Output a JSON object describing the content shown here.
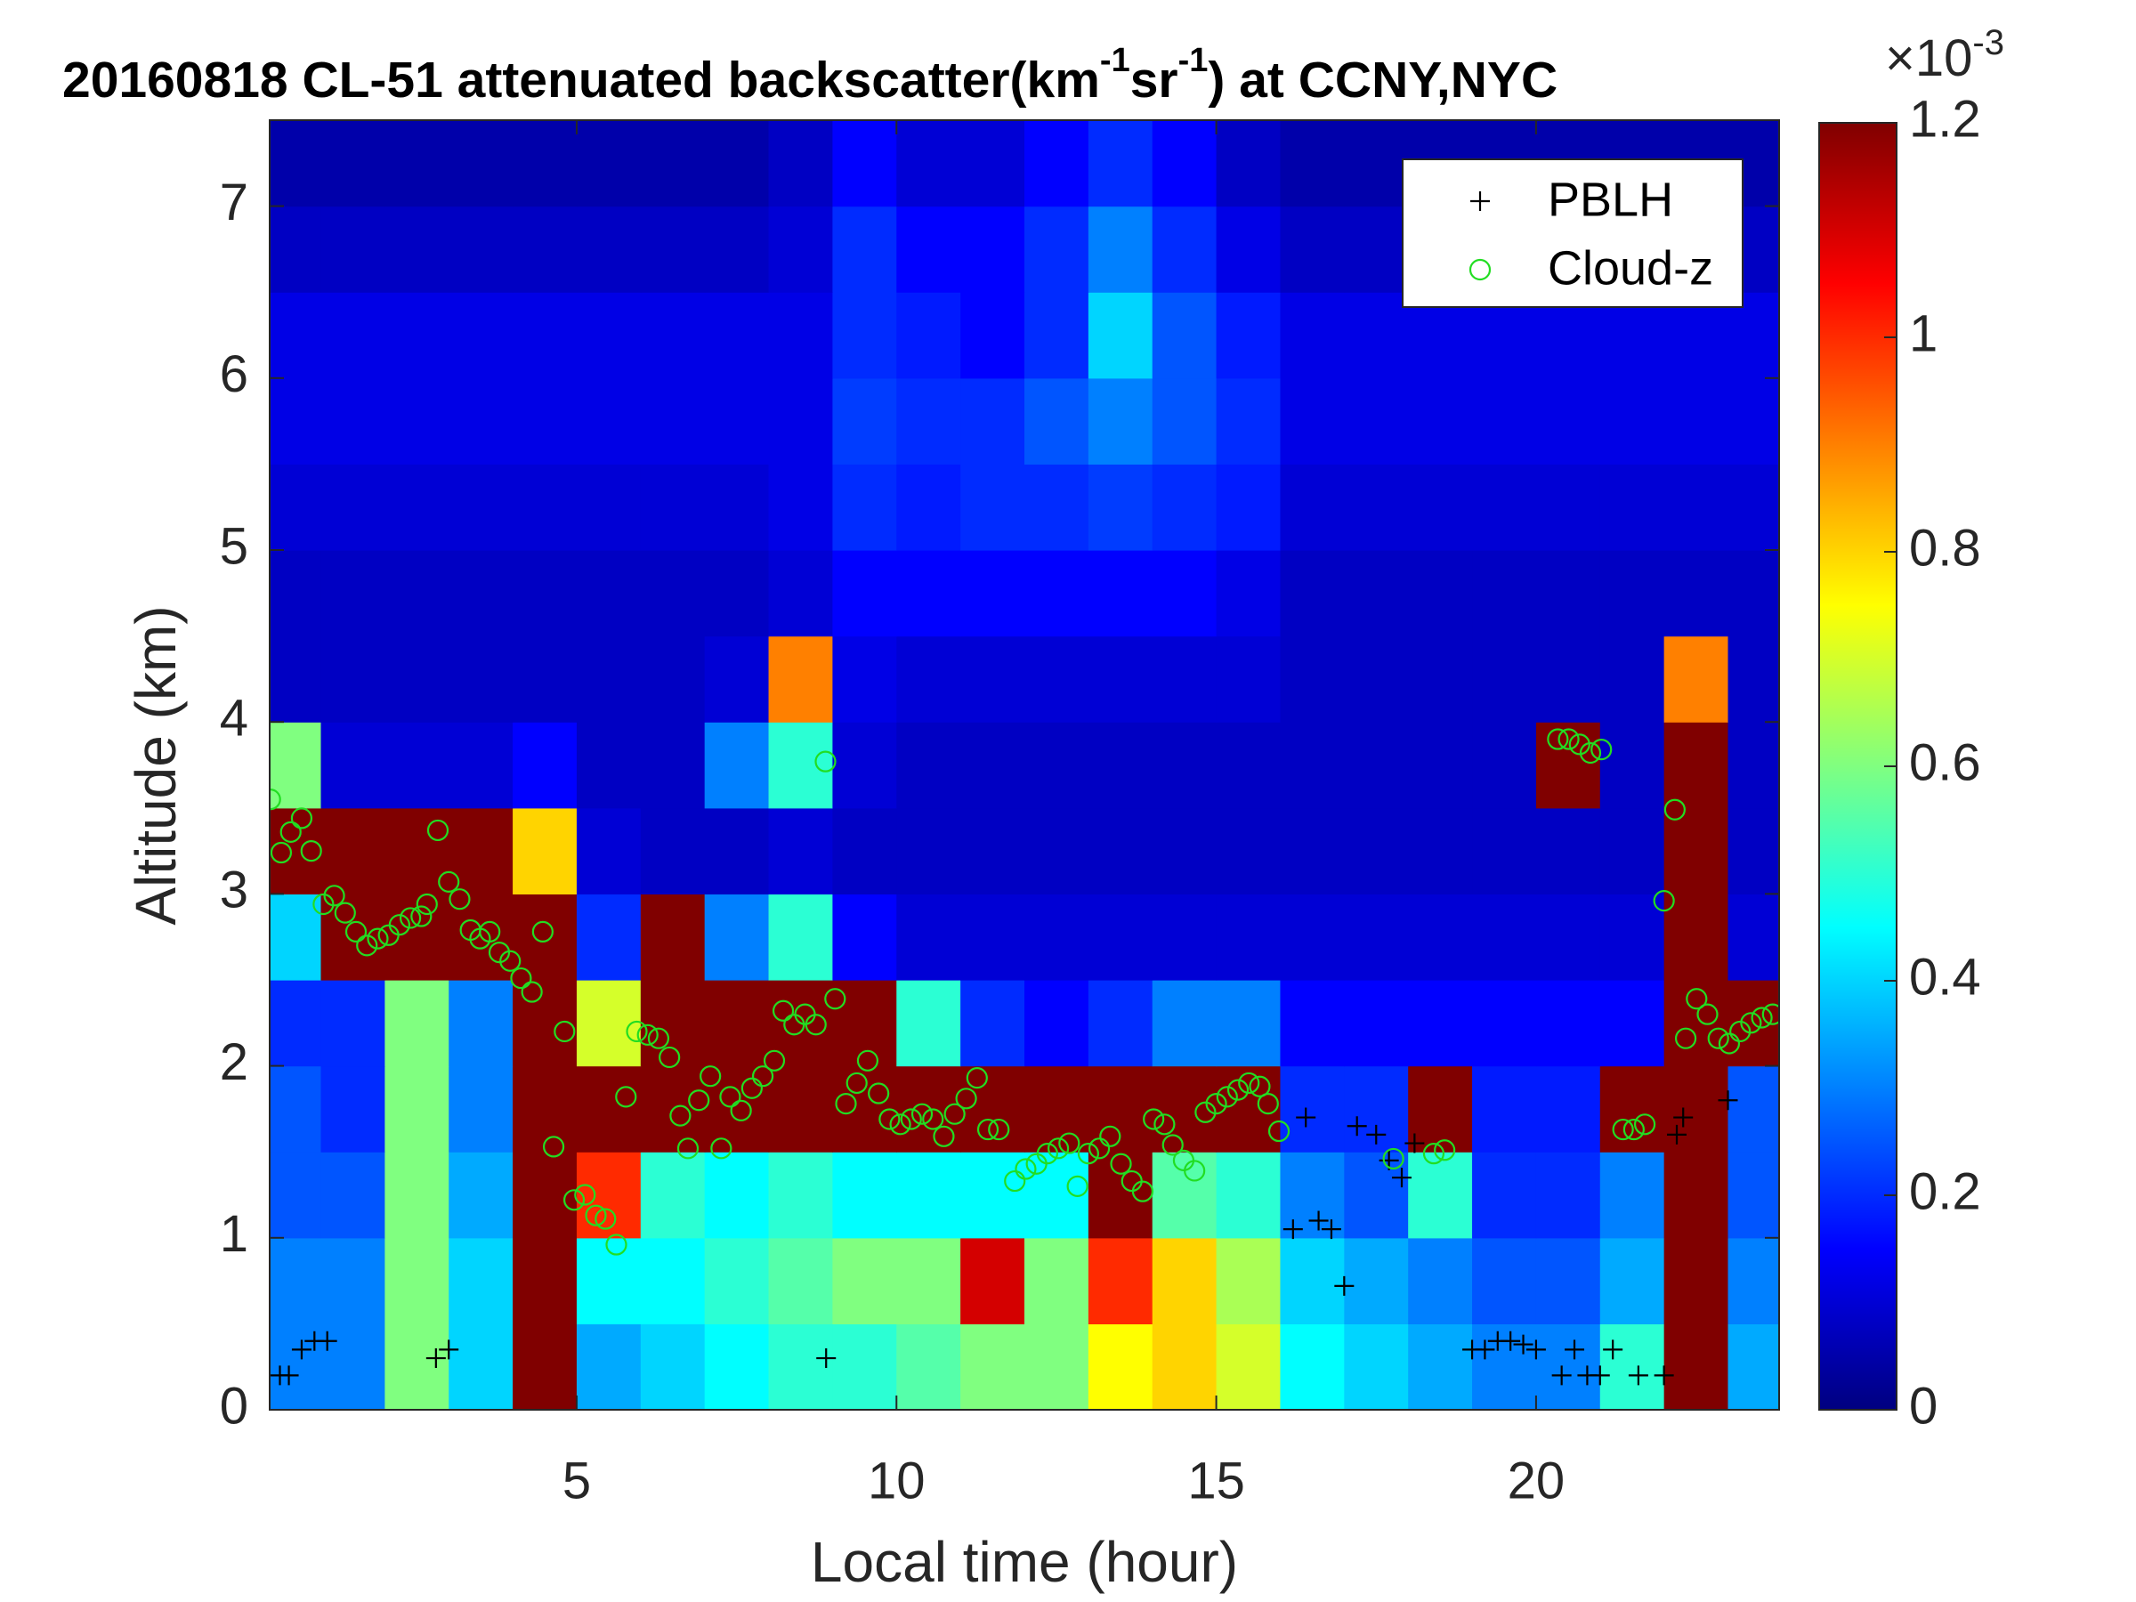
{
  "chart_data": {
    "type": "heatmap",
    "title_parts": [
      "20160818  CL-51 attenuated backscatter(km",
      "-1",
      "sr",
      "-1",
      ") at CCNY,NYC"
    ],
    "xlabel": "Local time (hour)",
    "ylabel": "Altitude (km)",
    "colormap": "jet",
    "x": [
      0.5,
      1.5,
      2.5,
      3.5,
      4.5,
      5.5,
      6.5,
      7.5,
      8.5,
      9.5,
      10.5,
      11.5,
      12.5,
      13.5,
      14.5,
      15.5,
      16.5,
      17.5,
      18.5,
      19.5,
      20.5,
      21.5,
      22.5,
      23.5
    ],
    "y": [
      0.25,
      0.75,
      1.25,
      1.75,
      2.25,
      2.75,
      3.25,
      3.75,
      4.25,
      4.75,
      5.25,
      5.75,
      6.25,
      6.75,
      7.25
    ],
    "z": [
      [
        0.3,
        0.3,
        0.6,
        0.4,
        1.2,
        0.35,
        0.4,
        0.45,
        0.5,
        0.5,
        0.55,
        0.6,
        0.6,
        0.75,
        0.8,
        0.7,
        0.45,
        0.4,
        0.35,
        0.3,
        0.3,
        0.5,
        1.2,
        0.35
      ],
      [
        0.3,
        0.3,
        0.6,
        0.4,
        1.2,
        0.45,
        0.45,
        0.5,
        0.55,
        0.6,
        0.6,
        1.1,
        0.6,
        1.0,
        0.8,
        0.65,
        0.4,
        0.35,
        0.3,
        0.25,
        0.25,
        0.35,
        1.2,
        0.3
      ],
      [
        0.25,
        0.25,
        0.6,
        0.35,
        1.2,
        1.0,
        0.5,
        0.45,
        0.5,
        0.45,
        0.45,
        0.45,
        0.45,
        1.2,
        0.55,
        0.5,
        0.3,
        0.25,
        0.5,
        0.2,
        0.2,
        0.3,
        1.2,
        0.25
      ],
      [
        0.25,
        0.2,
        0.6,
        0.3,
        1.2,
        1.2,
        1.2,
        1.2,
        1.2,
        1.2,
        1.2,
        1.2,
        1.2,
        1.2,
        1.2,
        1.2,
        0.2,
        0.2,
        1.2,
        0.18,
        0.18,
        1.2,
        1.2,
        0.25
      ],
      [
        0.2,
        0.2,
        0.6,
        0.3,
        1.2,
        0.7,
        1.2,
        1.2,
        1.2,
        1.2,
        0.5,
        0.2,
        0.15,
        0.2,
        0.3,
        0.3,
        0.15,
        0.15,
        0.15,
        0.15,
        0.15,
        0.15,
        1.2,
        1.2
      ],
      [
        0.4,
        1.2,
        1.2,
        1.2,
        1.2,
        0.2,
        1.2,
        0.3,
        0.5,
        0.15,
        0.1,
        0.1,
        0.1,
        0.1,
        0.1,
        0.1,
        0.1,
        0.1,
        0.1,
        0.1,
        0.1,
        0.1,
        1.2,
        0.1
      ],
      [
        1.2,
        1.2,
        1.2,
        1.2,
        0.8,
        0.1,
        0.08,
        0.08,
        0.1,
        0.08,
        0.08,
        0.08,
        0.08,
        0.08,
        0.08,
        0.08,
        0.08,
        0.08,
        0.08,
        0.08,
        0.08,
        0.08,
        1.2,
        0.08
      ],
      [
        0.6,
        0.1,
        0.1,
        0.1,
        0.15,
        0.08,
        0.08,
        0.3,
        0.5,
        0.1,
        0.08,
        0.08,
        0.08,
        0.08,
        0.08,
        0.08,
        0.08,
        0.08,
        0.08,
        0.08,
        1.2,
        0.08,
        1.2,
        0.08
      ],
      [
        0.08,
        0.08,
        0.08,
        0.08,
        0.08,
        0.08,
        0.08,
        0.1,
        0.9,
        0.12,
        0.1,
        0.1,
        0.1,
        0.1,
        0.1,
        0.1,
        0.08,
        0.08,
        0.08,
        0.08,
        0.08,
        0.08,
        0.9,
        0.08
      ],
      [
        0.08,
        0.08,
        0.08,
        0.08,
        0.08,
        0.08,
        0.08,
        0.08,
        0.1,
        0.15,
        0.15,
        0.15,
        0.15,
        0.15,
        0.15,
        0.12,
        0.08,
        0.08,
        0.08,
        0.08,
        0.08,
        0.08,
        0.08,
        0.08
      ],
      [
        0.1,
        0.1,
        0.1,
        0.1,
        0.1,
        0.1,
        0.1,
        0.1,
        0.12,
        0.2,
        0.18,
        0.2,
        0.2,
        0.22,
        0.2,
        0.18,
        0.1,
        0.1,
        0.1,
        0.1,
        0.1,
        0.1,
        0.1,
        0.1
      ],
      [
        0.12,
        0.12,
        0.12,
        0.12,
        0.12,
        0.12,
        0.12,
        0.12,
        0.12,
        0.22,
        0.2,
        0.2,
        0.25,
        0.3,
        0.25,
        0.2,
        0.12,
        0.12,
        0.12,
        0.12,
        0.12,
        0.12,
        0.12,
        0.12
      ],
      [
        0.12,
        0.12,
        0.12,
        0.12,
        0.12,
        0.12,
        0.12,
        0.12,
        0.12,
        0.2,
        0.18,
        0.15,
        0.2,
        0.4,
        0.25,
        0.18,
        0.12,
        0.12,
        0.12,
        0.12,
        0.12,
        0.12,
        0.12,
        0.12
      ],
      [
        0.08,
        0.08,
        0.08,
        0.08,
        0.08,
        0.08,
        0.08,
        0.08,
        0.1,
        0.2,
        0.15,
        0.15,
        0.2,
        0.3,
        0.2,
        0.12,
        0.08,
        0.08,
        0.08,
        0.08,
        0.08,
        0.08,
        0.08,
        0.08
      ],
      [
        0.05,
        0.05,
        0.05,
        0.05,
        0.05,
        0.05,
        0.05,
        0.05,
        0.08,
        0.15,
        0.1,
        0.1,
        0.15,
        0.2,
        0.15,
        0.08,
        0.05,
        0.05,
        0.05,
        0.05,
        0.05,
        0.05,
        0.05,
        0.05
      ]
    ],
    "xlim": [
      0.2,
      23.8
    ],
    "ylim": [
      0,
      7.5
    ],
    "xticks": [
      5,
      10,
      15,
      20
    ],
    "yticks": [
      0,
      1,
      2,
      3,
      4,
      5,
      6,
      7
    ],
    "colorbar": {
      "clim": [
        0,
        1.2
      ],
      "ticks": [
        0,
        0.2,
        0.4,
        0.6,
        0.8,
        1,
        1.2
      ],
      "multiplier_parts": [
        "×10",
        "-3"
      ]
    },
    "legend": "upper right",
    "series": [
      {
        "name": "PBLH",
        "marker": "+",
        "color": "#000000",
        "x": [
          0.36,
          0.5,
          0.7,
          0.9,
          1.1,
          2.8,
          3.0,
          8.9,
          16.2,
          16.4,
          16.6,
          16.8,
          17.0,
          17.2,
          17.5,
          17.7,
          17.9,
          18.1,
          19.0,
          19.2,
          19.4,
          19.6,
          19.8,
          20.0,
          20.4,
          20.6,
          20.8,
          21.0,
          21.2,
          21.6,
          22.0,
          22.2,
          22.3,
          23.0
        ],
        "y": [
          0.2,
          0.2,
          0.35,
          0.4,
          0.4,
          0.3,
          0.35,
          0.3,
          1.05,
          1.7,
          1.1,
          1.05,
          0.72,
          1.65,
          1.6,
          1.45,
          1.35,
          1.55,
          0.35,
          0.35,
          0.4,
          0.4,
          0.38,
          0.35,
          0.2,
          0.35,
          0.2,
          0.2,
          0.35,
          0.2,
          0.2,
          1.6,
          1.7,
          1.8
        ]
      },
      {
        "name": "Cloud-z",
        "marker": "o",
        "color": "#22dd22",
        "x": [
          0.21,
          0.38,
          0.53,
          0.7,
          0.85,
          1.04,
          1.21,
          1.38,
          1.55,
          1.72,
          1.89,
          2.06,
          2.23,
          2.4,
          2.57,
          2.66,
          2.83,
          3.0,
          3.17,
          3.34,
          3.49,
          3.64,
          3.79,
          3.96,
          4.13,
          4.3,
          4.47,
          4.64,
          4.81,
          4.96,
          5.13,
          5.3,
          5.45,
          5.62,
          5.77,
          5.94,
          6.11,
          6.28,
          6.45,
          6.62,
          6.74,
          6.91,
          7.09,
          7.26,
          7.4,
          7.57,
          7.74,
          7.91,
          8.09,
          8.23,
          8.4,
          8.57,
          8.74,
          8.89,
          9.04,
          9.21,
          9.38,
          9.55,
          9.72,
          9.89,
          10.06,
          10.23,
          10.4,
          10.57,
          10.74,
          10.91,
          11.09,
          11.26,
          11.43,
          11.6,
          11.85,
          12.02,
          12.19,
          12.36,
          12.53,
          12.7,
          12.83,
          13.0,
          13.17,
          13.34,
          13.51,
          13.68,
          13.85,
          14.02,
          14.19,
          14.32,
          14.49,
          14.66,
          14.83,
          15.0,
          15.17,
          15.34,
          15.51,
          15.68,
          15.81,
          15.98,
          17.77,
          18.4,
          18.57,
          20.34,
          20.51,
          20.68,
          20.85,
          21.02,
          21.36,
          21.53,
          21.7,
          22.0,
          22.17,
          22.34,
          22.51,
          22.68,
          22.85,
          23.02,
          23.19,
          23.36,
          23.53,
          23.7
        ],
        "y": [
          3.55,
          3.24,
          3.36,
          3.44,
          3.25,
          2.94,
          2.99,
          2.89,
          2.78,
          2.7,
          2.74,
          2.76,
          2.82,
          2.86,
          2.87,
          2.94,
          3.37,
          3.07,
          2.97,
          2.79,
          2.74,
          2.78,
          2.66,
          2.61,
          2.51,
          2.43,
          2.78,
          1.53,
          2.2,
          1.22,
          1.25,
          1.13,
          1.11,
          0.96,
          1.82,
          2.2,
          2.18,
          2.16,
          2.05,
          1.71,
          1.52,
          1.8,
          1.94,
          1.52,
          1.82,
          1.74,
          1.87,
          1.94,
          2.03,
          2.32,
          2.24,
          2.3,
          2.24,
          3.77,
          2.39,
          1.78,
          1.9,
          2.03,
          1.84,
          1.69,
          1.66,
          1.69,
          1.72,
          1.69,
          1.59,
          1.72,
          1.81,
          1.93,
          1.63,
          1.63,
          1.33,
          1.4,
          1.43,
          1.49,
          1.52,
          1.55,
          1.3,
          1.49,
          1.52,
          1.59,
          1.43,
          1.33,
          1.27,
          1.69,
          1.66,
          1.54,
          1.45,
          1.39,
          1.73,
          1.78,
          1.82,
          1.86,
          1.9,
          1.88,
          1.78,
          1.62,
          1.46,
          1.49,
          1.51,
          3.9,
          3.9,
          3.87,
          3.82,
          3.84,
          1.63,
          1.63,
          1.66,
          2.96,
          3.49,
          2.16,
          2.39,
          2.3,
          2.16,
          2.13,
          2.2,
          2.25,
          2.28,
          2.3
        ]
      }
    ]
  }
}
